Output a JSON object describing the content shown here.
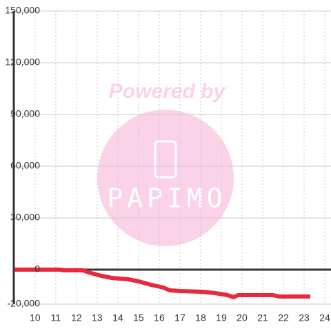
{
  "chart_data": {
    "type": "line",
    "watermark": {
      "top": "Powered by",
      "brand": "PAPIMO"
    },
    "x": [
      9,
      11.2,
      11.4,
      12.3,
      12.7,
      13.2,
      13.7,
      14.5,
      15,
      15.6,
      16.2,
      16.5,
      17,
      18,
      18.7,
      19.3,
      19.6,
      19.8,
      21.5,
      21.8,
      23.3
    ],
    "series": [
      {
        "color": "#e8283c",
        "values": [
          0,
          0,
          -400,
          -400,
          -2000,
          -3600,
          -4800,
          -5600,
          -6800,
          -8800,
          -10400,
          -12000,
          -12400,
          -12800,
          -13600,
          -14800,
          -16000,
          -14800,
          -14800,
          -15600,
          -15600
        ]
      }
    ],
    "xlim": [
      8.97,
      24.3
    ],
    "xticks": [
      10,
      11,
      12,
      13,
      14,
      15,
      16,
      17,
      18,
      19,
      20,
      21,
      22,
      23,
      24
    ],
    "ylim": [
      -20000,
      150000
    ],
    "yticks": [
      {
        "value": -20000,
        "label": "-20,000"
      },
      0,
      {
        "value": 30000,
        "label": "30,000"
      },
      {
        "value": 60000,
        "label": "60,000"
      },
      {
        "value": 90000,
        "label": "90,000"
      },
      {
        "value": 120000,
        "label": "120,000"
      },
      {
        "value": 150000,
        "label": "150,000"
      }
    ],
    "grid": true
  }
}
